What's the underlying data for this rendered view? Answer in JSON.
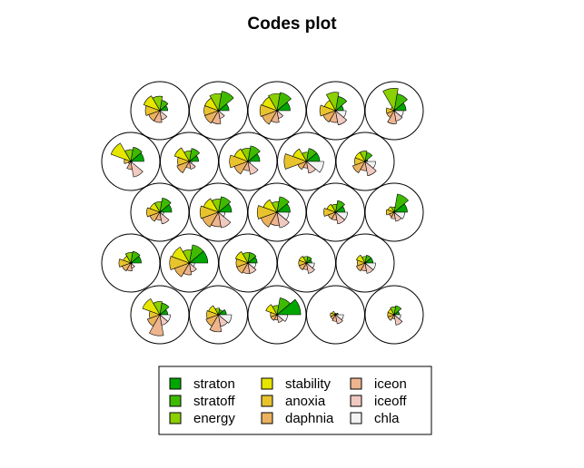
{
  "chart_data": {
    "type": "som-codes-fan",
    "title": "Codes plot",
    "variables": [
      "straton",
      "stratoff",
      "energy",
      "stability",
      "anoxia",
      "daphnia",
      "iceon",
      "iceoff",
      "chla"
    ],
    "colors": [
      "#00A600",
      "#3EBB00",
      "#8BD000",
      "#E6E600",
      "#E8C32E",
      "#EBB25E",
      "#EDB48E",
      "#F0C9C0",
      "#F2F2F2"
    ],
    "grid": {
      "rows": 5,
      "cols": 5,
      "topology": "hexagonal"
    },
    "legend": {
      "columns": 3,
      "position": "bottom"
    },
    "codes": [
      [
        0.3,
        0.4,
        0.55,
        0.65,
        0.55,
        0.45,
        0.45,
        0.35,
        0.0
      ],
      [
        0.4,
        0.75,
        0.65,
        0.55,
        0.55,
        0.55,
        0.5,
        0.3,
        0.05
      ],
      [
        0.5,
        0.7,
        0.65,
        0.6,
        0.65,
        0.6,
        0.45,
        0.3,
        0.05
      ],
      [
        0.3,
        0.55,
        0.7,
        0.45,
        0.6,
        0.5,
        0.45,
        0.55,
        0.4
      ],
      [
        0.45,
        0.65,
        0.85,
        0.15,
        0.3,
        0.3,
        0.5,
        0.4,
        0.35
      ],
      [
        0.5,
        0.55,
        0.45,
        0.8,
        0.25,
        0.1,
        0.3,
        0.6,
        0.05
      ],
      [
        0.35,
        0.5,
        0.4,
        0.6,
        0.45,
        0.5,
        0.25,
        0.3,
        0.1
      ],
      [
        0.45,
        0.6,
        0.5,
        0.55,
        0.7,
        0.55,
        0.35,
        0.5,
        0.1
      ],
      [
        0.5,
        0.5,
        0.35,
        0.55,
        0.85,
        0.35,
        0.25,
        0.45,
        0.65
      ],
      [
        0.1,
        0.35,
        0.4,
        0.4,
        0.4,
        0.5,
        0.35,
        0.55,
        0.4
      ],
      [
        0.45,
        0.55,
        0.4,
        0.4,
        0.5,
        0.4,
        0.3,
        0.45,
        0.15
      ],
      [
        0.5,
        0.6,
        0.5,
        0.6,
        0.7,
        0.65,
        0.55,
        0.6,
        0.25
      ],
      [
        0.5,
        0.6,
        0.4,
        0.55,
        0.75,
        0.65,
        0.5,
        0.6,
        0.45
      ],
      [
        0.35,
        0.45,
        0.3,
        0.35,
        0.45,
        0.3,
        0.3,
        0.45,
        0.45
      ],
      [
        0.5,
        0.7,
        0.2,
        0.25,
        0.3,
        0.2,
        0.25,
        0.35,
        0.4
      ],
      [
        0.4,
        0.45,
        0.4,
        0.3,
        0.45,
        0.35,
        0.3,
        0.2,
        0.05
      ],
      [
        0.7,
        0.7,
        0.5,
        0.7,
        0.75,
        0.6,
        0.45,
        0.35,
        0.2
      ],
      [
        0.35,
        0.4,
        0.4,
        0.5,
        0.45,
        0.45,
        0.4,
        0.4,
        0.3
      ],
      [
        0.2,
        0.25,
        0.25,
        0.3,
        0.3,
        0.3,
        0.25,
        0.4,
        0.3
      ],
      [
        0.3,
        0.3,
        0.25,
        0.35,
        0.3,
        0.35,
        0.3,
        0.4,
        0.4
      ],
      [
        0.3,
        0.45,
        0.5,
        0.7,
        0.4,
        0.5,
        0.8,
        0.4,
        0.4
      ],
      [
        0.3,
        0.2,
        0.25,
        0.4,
        0.45,
        0.5,
        0.65,
        0.45,
        0.5
      ],
      [
        0.9,
        0.65,
        0.35,
        0.45,
        0.25,
        0.25,
        0.2,
        0.3,
        0.4
      ],
      [
        0.1,
        0.05,
        0.05,
        0.15,
        0.2,
        0.2,
        0.25,
        0.35,
        0.3
      ],
      [
        0.2,
        0.35,
        0.3,
        0.25,
        0.25,
        0.25,
        0.15,
        0.4,
        0.25
      ]
    ]
  }
}
